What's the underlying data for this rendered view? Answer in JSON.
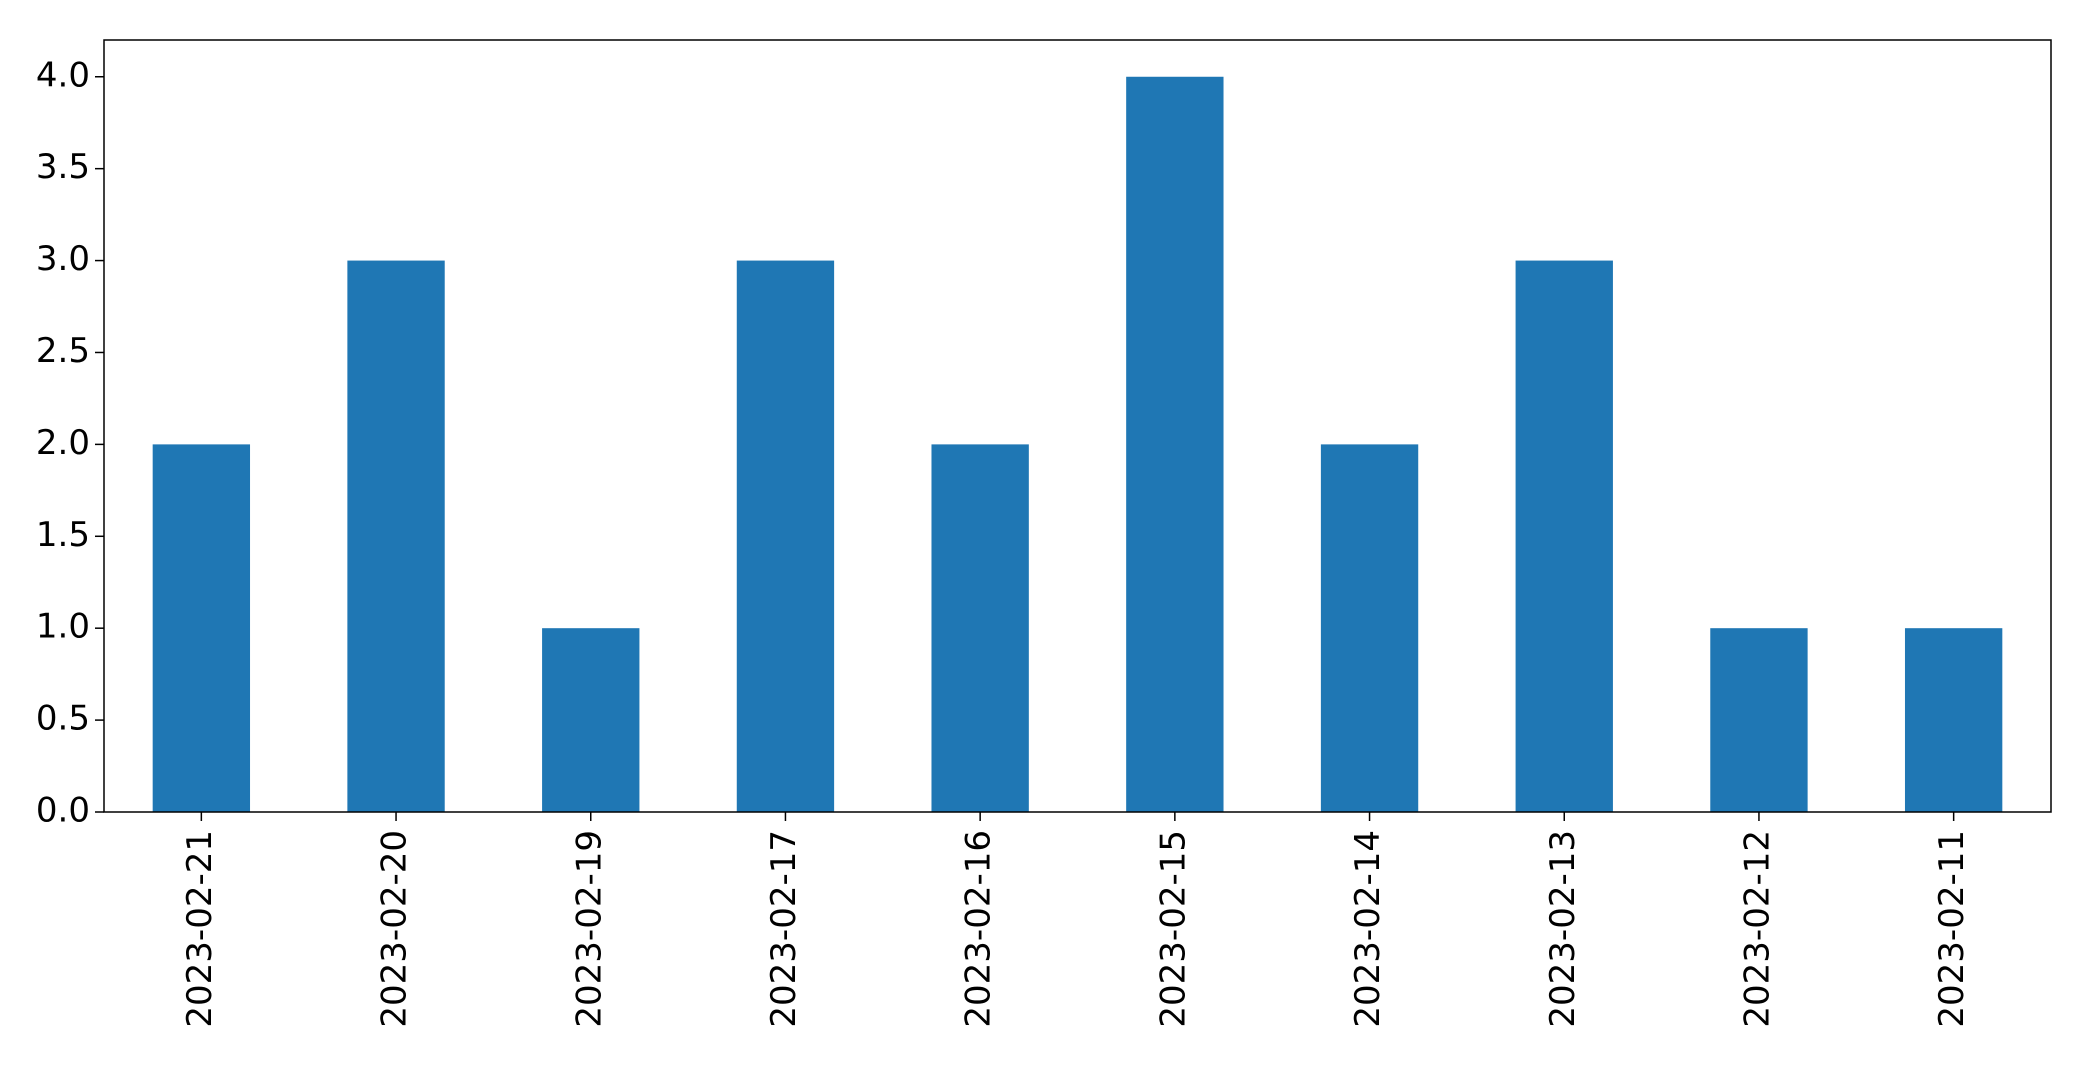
{
  "chart_data": {
    "type": "bar",
    "categories": [
      "2023-02-21",
      "2023-02-20",
      "2023-02-19",
      "2023-02-17",
      "2023-02-16",
      "2023-02-15",
      "2023-02-14",
      "2023-02-13",
      "2023-02-12",
      "2023-02-11"
    ],
    "values": [
      2,
      3,
      1,
      3,
      2,
      4,
      2,
      3,
      1,
      1
    ],
    "title": "",
    "xlabel": "",
    "ylabel": "",
    "ylim": [
      0,
      4.2
    ],
    "yticks": [
      "0.0",
      "0.5",
      "1.0",
      "1.5",
      "2.0",
      "2.5",
      "3.0",
      "3.5",
      "4.0"
    ],
    "grid": false,
    "legend": "none",
    "bar_color": "#1f77b4"
  }
}
